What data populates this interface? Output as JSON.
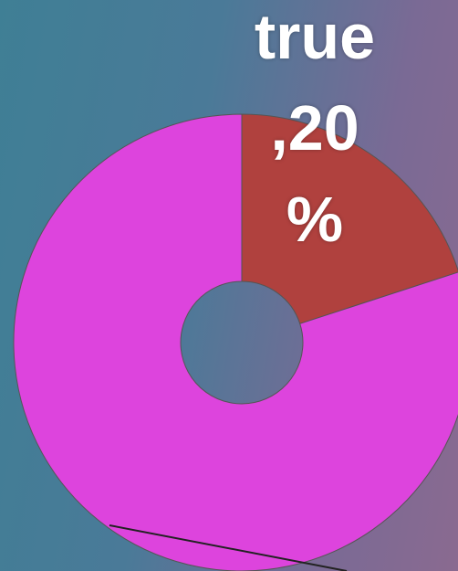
{
  "chart_data": {
    "type": "donut",
    "categories": [
      "true",
      null
    ],
    "values": [
      20,
      80
    ],
    "value_labels": [
      ",20 %",
      null
    ],
    "colors": [
      "#b0413e",
      "#dd44dd"
    ]
  }
}
